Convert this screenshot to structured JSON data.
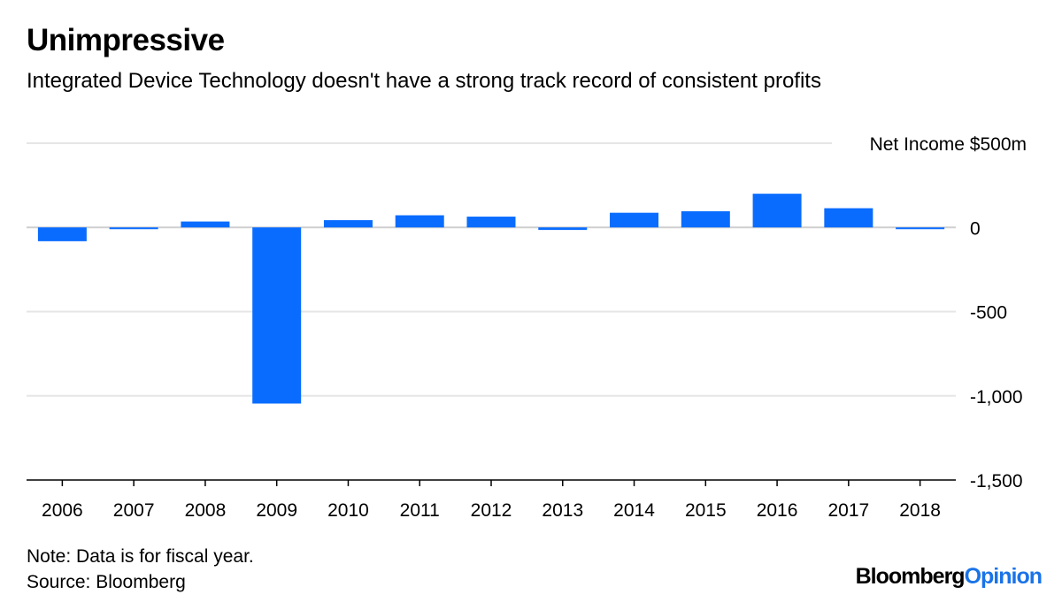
{
  "header": {
    "title": "Unimpressive",
    "subtitle": "Integrated Device Technology doesn't have a strong track record of consistent profits"
  },
  "chart_data": {
    "type": "bar",
    "categories": [
      "2006",
      "2007",
      "2008",
      "2009",
      "2010",
      "2011",
      "2012",
      "2013",
      "2014",
      "2015",
      "2016",
      "2017",
      "2018"
    ],
    "values": [
      -82,
      -5,
      35,
      -1046,
      43,
      72,
      64,
      -15,
      87,
      96,
      200,
      114,
      -5
    ],
    "ylabel": "Net Income $500m",
    "ylim": [
      -1500,
      500
    ],
    "yticks": [
      500,
      0,
      -500,
      -1000,
      -1500
    ],
    "ytick_labels": [
      "",
      "0",
      "-500",
      "-1,000",
      "-1,500"
    ],
    "grid": true,
    "bar_color": "#0a6cff"
  },
  "footer": {
    "note": "Note: Data is for fiscal year.",
    "source": "Source: Bloomberg",
    "brand_part1": "Bloomberg",
    "brand_part2": "Opinion"
  }
}
